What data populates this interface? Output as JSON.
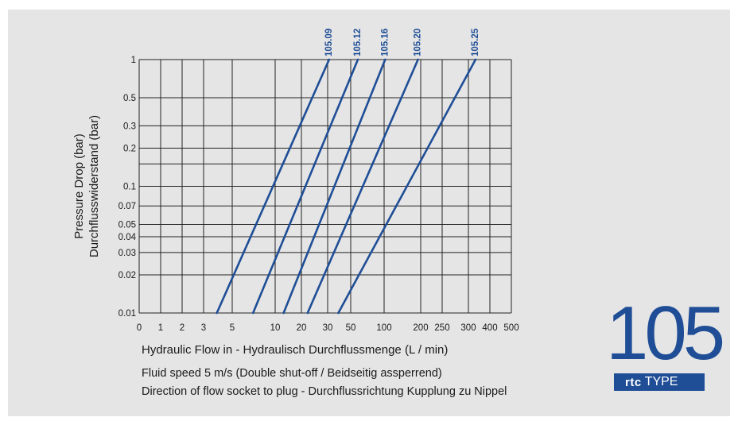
{
  "colors": {
    "background": "#e5e5e6",
    "grid": "#222222",
    "series": "#1f4e96",
    "text": "#1a1a1a"
  },
  "chart_data": {
    "type": "line",
    "xlabel": "Hydraulic Flow in - Hydraulisch Durchflussmenge (L / min)",
    "ylabel": [
      "Pressure Drop (bar)",
      "Durchflusswiderstand (bar)"
    ],
    "x_scale": "log",
    "y_scale": "log",
    "x_tick_labels": [
      "0",
      "1",
      "2",
      "3",
      "5",
      "10",
      "20",
      "30",
      "50",
      "100",
      "200",
      "250",
      "300",
      "400",
      "500"
    ],
    "y_tick_labels": [
      "0.01",
      "0.02",
      "0.03",
      "0.04",
      "0.05",
      "0.07",
      "0.1",
      "0.2",
      "0.3",
      "0.5",
      "1"
    ],
    "y_ticks": [
      0.01,
      0.02,
      0.03,
      0.04,
      0.05,
      0.07,
      0.1,
      0.15,
      0.2,
      0.3,
      0.5,
      1
    ],
    "ylim": [
      0.01,
      1
    ],
    "grid": true,
    "legend": "series labels at top of lines",
    "series": [
      {
        "name": "105.09",
        "points": [
          [
            3.8,
            0.01
          ],
          [
            31,
            1
          ]
        ]
      },
      {
        "name": "105.12",
        "points": [
          [
            7.0,
            0.01
          ],
          [
            58,
            1
          ]
        ]
      },
      {
        "name": "105.16",
        "points": [
          [
            12.5,
            0.01
          ],
          [
            102,
            1
          ]
        ]
      },
      {
        "name": "105.20",
        "points": [
          [
            22,
            0.01
          ],
          [
            190,
            1
          ]
        ]
      },
      {
        "name": "105.25",
        "points": [
          [
            38,
            0.01
          ],
          [
            330,
            1
          ]
        ]
      }
    ]
  },
  "notes": {
    "line1": "Fluid speed 5 m/s (Double shut-off / Beidseitig assperrend)",
    "line2": "Direction of flow socket to plug - Durchflussrichtung Kupplung zu Nippel"
  },
  "badge": {
    "number": "105",
    "brand": "rtc",
    "type": "TYPE"
  }
}
